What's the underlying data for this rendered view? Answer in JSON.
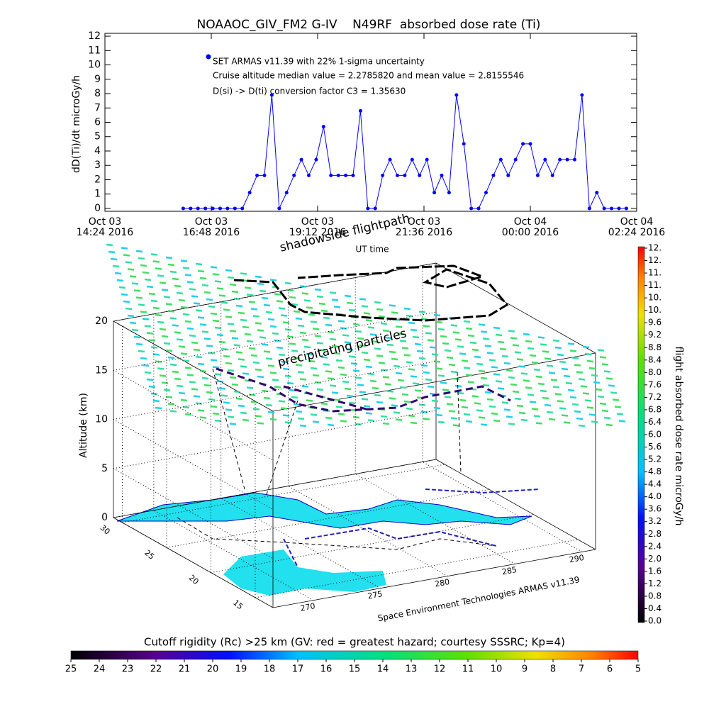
{
  "chart_data": [
    {
      "type": "line",
      "title": "NOAAOC_GIV_FM2 G-IV    N49RF  absorbed dose rate (Ti)",
      "y_label": "dD(Ti)/dt microGy/h",
      "x_label": "UT time",
      "annotations": [
        "Cruise altitude median value = 2.2785820 and mean value = 2.8155546",
        "D(si) -> D(ti) conversion factor C3 = 1.35630"
      ],
      "x": [
        "2016-10-03T16:10",
        "2016-10-03T16:20",
        "2016-10-03T16:30",
        "2016-10-03T16:40",
        "2016-10-03T16:50",
        "2016-10-03T17:00",
        "2016-10-03T17:10",
        "2016-10-03T17:20",
        "2016-10-03T17:30",
        "2016-10-03T17:40",
        "2016-10-03T17:50",
        "2016-10-03T18:00",
        "2016-10-03T18:10",
        "2016-10-03T18:20",
        "2016-10-03T18:30",
        "2016-10-03T18:40",
        "2016-10-03T18:50",
        "2016-10-03T19:00",
        "2016-10-03T19:10",
        "2016-10-03T19:20",
        "2016-10-03T19:30",
        "2016-10-03T19:40",
        "2016-10-03T19:50",
        "2016-10-03T20:00",
        "2016-10-03T20:10",
        "2016-10-03T20:20",
        "2016-10-03T20:30",
        "2016-10-03T20:40",
        "2016-10-03T20:50",
        "2016-10-03T21:00",
        "2016-10-03T21:10",
        "2016-10-03T21:20",
        "2016-10-03T21:30",
        "2016-10-03T21:40",
        "2016-10-03T21:50",
        "2016-10-03T22:00",
        "2016-10-03T22:10",
        "2016-10-03T22:20",
        "2016-10-03T22:30",
        "2016-10-03T22:40",
        "2016-10-03T22:50",
        "2016-10-03T23:00",
        "2016-10-03T23:10",
        "2016-10-03T23:20",
        "2016-10-03T23:30",
        "2016-10-03T23:40",
        "2016-10-03T23:50",
        "2016-10-04T00:00",
        "2016-10-04T00:10",
        "2016-10-04T00:20",
        "2016-10-04T00:30",
        "2016-10-04T00:40",
        "2016-10-04T00:50",
        "2016-10-04T01:00",
        "2016-10-04T01:10",
        "2016-10-04T01:20",
        "2016-10-04T01:30",
        "2016-10-04T01:40",
        "2016-10-04T01:50",
        "2016-10-04T02:00",
        "2016-10-04T02:10"
      ],
      "series": [
        {
          "name": "SET ARMAS v11.39 with 22% 1-sigma uncertainty",
          "color": "#0000ff",
          "values": [
            0,
            0,
            0,
            0,
            0,
            0,
            0,
            0,
            0,
            1.1,
            2.3,
            2.3,
            7.9,
            0,
            1.1,
            2.3,
            3.4,
            2.3,
            3.4,
            5.7,
            2.3,
            2.3,
            2.3,
            2.3,
            6.8,
            0,
            0,
            2.3,
            3.4,
            2.3,
            2.3,
            3.4,
            2.3,
            3.4,
            1.1,
            2.3,
            1.1,
            7.9,
            4.5,
            0,
            0,
            1.1,
            2.3,
            3.4,
            2.3,
            3.4,
            4.5,
            4.5,
            2.3,
            3.4,
            2.3,
            3.4,
            3.4,
            3.4,
            7.9,
            0,
            1.1,
            0,
            0,
            0,
            0
          ]
        }
      ],
      "xticks": [
        {
          "value": "2016-10-03T14:24",
          "label": "Oct 03\n14:24 2016"
        },
        {
          "value": "2016-10-03T16:48",
          "label": "Oct 03\n16:48 2016"
        },
        {
          "value": "2016-10-03T19:12",
          "label": "Oct 03\n19:12 2016"
        },
        {
          "value": "2016-10-03T21:36",
          "label": "Oct 03\n21:36 2016"
        },
        {
          "value": "2016-10-04T00:00",
          "label": "Oct 04\n00:00 2016"
        },
        {
          "value": "2016-10-04T02:24",
          "label": "Oct 04\n02:24 2016"
        }
      ],
      "xlim": [
        "2016-10-03T14:24",
        "2016-10-04T02:24"
      ],
      "ylim": [
        -0.2,
        12.2
      ],
      "yticks": [
        0,
        1,
        2,
        3,
        4,
        5,
        6,
        7,
        8,
        9,
        10,
        11,
        12
      ]
    },
    {
      "type": "surface3d",
      "annotations": [
        "shadowside flightpath",
        "precipitating particles",
        "Space Environment Technologies ARMAS v11.39"
      ],
      "zlabel": "Altitude (km)",
      "zlim": [
        0,
        20
      ],
      "zticks": [
        0,
        5,
        10,
        15,
        20
      ],
      "ylim": [
        13,
        31
      ],
      "yticks": [
        15,
        20,
        25,
        30
      ],
      "xlim": [
        267,
        291
      ],
      "xticks": [
        270,
        275,
        280,
        285,
        290
      ],
      "colorbar": {
        "label": "flight absorbed dose rate microGy/h",
        "lim": [
          0,
          12
        ],
        "ticks": [
          {
            "value": 0,
            "label": "0.0"
          },
          0.4,
          0.8,
          1.2,
          1.6,
          {
            "value": 2,
            "label": "2.0"
          },
          2.4,
          2.8,
          3.2,
          3.6,
          {
            "value": 4,
            "label": "4.0"
          },
          4.4,
          4.8,
          5.2,
          5.6,
          {
            "value": 6,
            "label": "6.0"
          },
          6.4,
          6.8,
          7.2,
          7.6,
          {
            "value": 8,
            "label": "8.0"
          },
          8.4,
          8.8,
          9.2,
          9.6,
          {
            "value": 10,
            "label": "10."
          },
          {
            "value": 10.4,
            "label": "10."
          },
          {
            "value": 10.8,
            "label": "11."
          },
          {
            "value": 11.2,
            "label": "11."
          },
          {
            "value": 11.6,
            "label": "12."
          },
          {
            "value": 12,
            "label": "12."
          }
        ]
      },
      "colorbar2": {
        "title": "Cutoff rigidity (Rc) >25 km (GV: red = greatest hazard; courtesy SSSRC; Kp=4)",
        "lim": [
          25,
          5
        ],
        "ticks": [
          25,
          24,
          23,
          22,
          21,
          20,
          19,
          18,
          17,
          16,
          15,
          14,
          13,
          12,
          11,
          10,
          9,
          8,
          7,
          6,
          5
        ]
      }
    }
  ]
}
